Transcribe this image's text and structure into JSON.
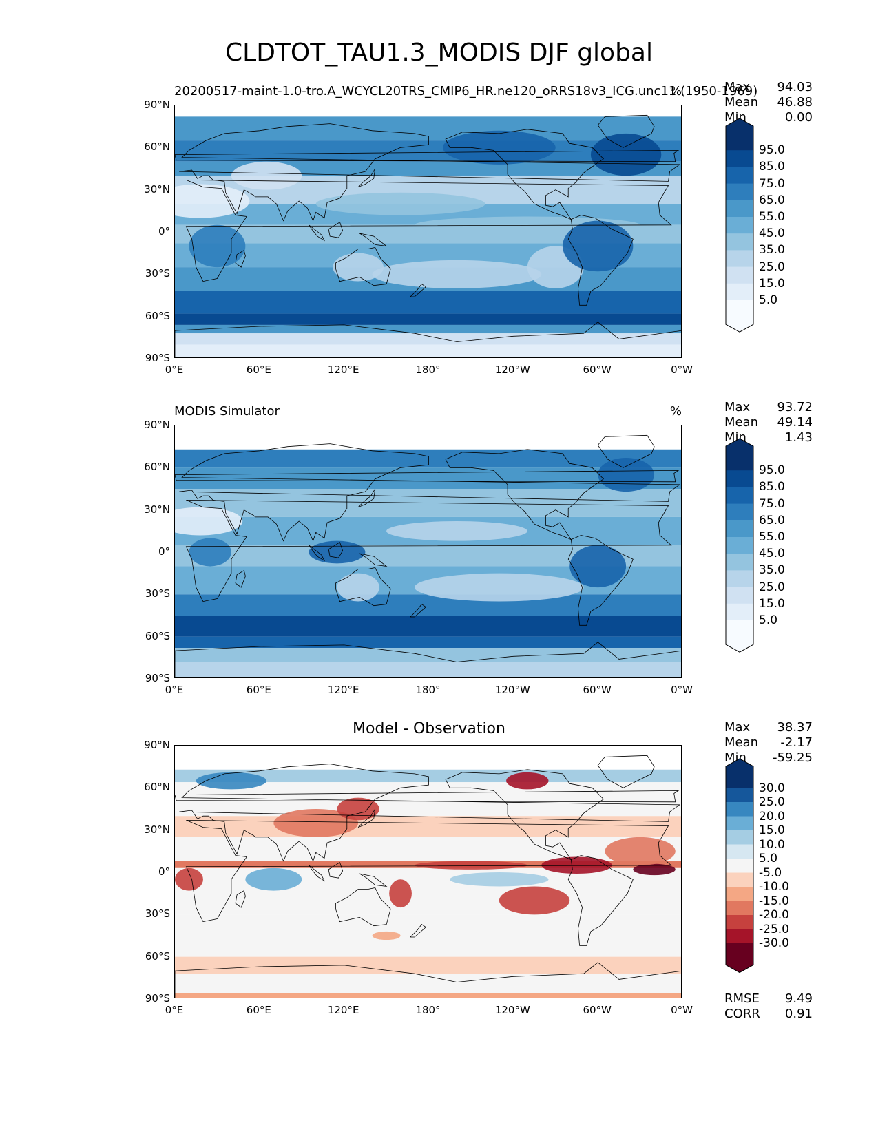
{
  "title": "CLDTOT_TAU1.3_MODIS DJF global",
  "xticks": [
    "0°E",
    "60°E",
    "120°E",
    "180°",
    "120°W",
    "60°W",
    "0°W"
  ],
  "yticks": [
    "90°N",
    "60°N",
    "30°N",
    "0°",
    "30°S",
    "60°S",
    "90°S"
  ],
  "panels": [
    {
      "left_title": "20200517-maint-1.0-tro.A_WCYCL20TRS_CMIP6_HR.ne120_oRRS18v3_ICG.unc11 (1950-1969)",
      "center_title": "",
      "units": "%",
      "stats": [
        {
          "label": "Max",
          "value": "94.03"
        },
        {
          "label": "Mean",
          "value": "46.88"
        },
        {
          "label": "Min",
          "value": "0.00"
        }
      ],
      "colorbar_labels": [
        "95.0",
        "85.0",
        "75.0",
        "65.0",
        "55.0",
        "45.0",
        "35.0",
        "25.0",
        "15.0",
        "5.0"
      ]
    },
    {
      "left_title": "MODIS Simulator",
      "center_title": "",
      "units": "%",
      "stats": [
        {
          "label": "Max",
          "value": "93.72"
        },
        {
          "label": "Mean",
          "value": "49.14"
        },
        {
          "label": "Min",
          "value": "1.43"
        }
      ],
      "colorbar_labels": [
        "95.0",
        "85.0",
        "75.0",
        "65.0",
        "55.0",
        "45.0",
        "35.0",
        "25.0",
        "15.0",
        "5.0"
      ]
    },
    {
      "left_title": "",
      "center_title": "Model - Observation",
      "units": "",
      "stats": [
        {
          "label": "Max",
          "value": "38.37"
        },
        {
          "label": "Mean",
          "value": "-2.17"
        },
        {
          "label": "Min",
          "value": "-59.25"
        }
      ],
      "colorbar_labels": [
        "30.0",
        "25.0",
        "20.0",
        "15.0",
        "10.0",
        "5.0",
        "-5.0",
        "-10.0",
        "-15.0",
        "-20.0",
        "-25.0",
        "-30.0"
      ],
      "error_stats": [
        {
          "label": "RMSE",
          "value": "9.49"
        },
        {
          "label": "CORR",
          "value": "0.91"
        }
      ]
    }
  ],
  "chart_data": [
    {
      "type": "heatmap",
      "title": "20200517-maint-1.0-tro.A_WCYCL20TRS_CMIP6_HR.ne120_oRRS18v3_ICG.unc11 (1950-1969)",
      "units": "%",
      "x_range": [
        0,
        360
      ],
      "y_range": [
        -90,
        90
      ],
      "colormap": "Blues",
      "levels": [
        0,
        5,
        15,
        25,
        35,
        45,
        55,
        65,
        75,
        85,
        95,
        100
      ],
      "colors": [
        "#f7fbff",
        "#e3eef9",
        "#d0e1f2",
        "#b7d4ea",
        "#94c4df",
        "#6aaed6",
        "#4a98c9",
        "#2e7ebc",
        "#1764ab",
        "#084a91",
        "#08306b"
      ],
      "stats": {
        "max": 94.03,
        "mean": 46.88,
        "min": 0.0
      }
    },
    {
      "type": "heatmap",
      "title": "MODIS Simulator",
      "units": "%",
      "x_range": [
        0,
        360
      ],
      "y_range": [
        -90,
        90
      ],
      "colormap": "Blues",
      "levels": [
        0,
        5,
        15,
        25,
        35,
        45,
        55,
        65,
        75,
        85,
        95,
        100
      ],
      "colors": [
        "#f7fbff",
        "#e3eef9",
        "#d0e1f2",
        "#b7d4ea",
        "#94c4df",
        "#6aaed6",
        "#4a98c9",
        "#2e7ebc",
        "#1764ab",
        "#084a91",
        "#08306b"
      ],
      "stats": {
        "max": 93.72,
        "mean": 49.14,
        "min": 1.43
      }
    },
    {
      "type": "heatmap",
      "title": "Model - Observation",
      "x_range": [
        0,
        360
      ],
      "y_range": [
        -90,
        90
      ],
      "colormap": "RdBu_r",
      "levels": [
        -30,
        -25,
        -20,
        -15,
        -10,
        -5,
        5,
        10,
        15,
        20,
        25,
        30
      ],
      "colors": [
        "#67001f",
        "#a51429",
        "#c6413e",
        "#e17860",
        "#f4a784",
        "#fbd2bd",
        "#f5f5f5",
        "#d6e7f1",
        "#a5cde3",
        "#6aaed6",
        "#3787c0",
        "#15579b",
        "#08306b"
      ],
      "stats": {
        "max": 38.37,
        "mean": -2.17,
        "min": -59.25,
        "rmse": 9.49,
        "corr": 0.91
      }
    }
  ]
}
